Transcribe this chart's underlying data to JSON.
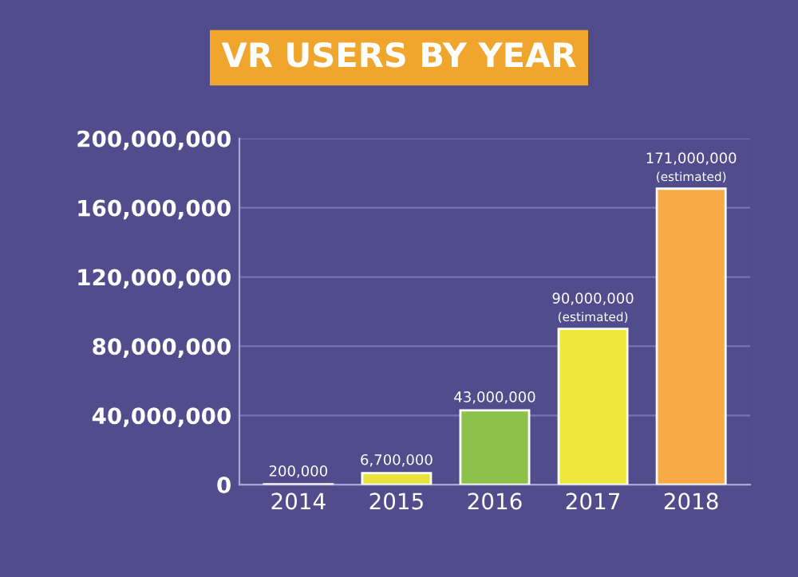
{
  "chart_data": {
    "type": "bar",
    "title": "VR USERS BY YEAR",
    "categories": [
      "2014",
      "2015",
      "2016",
      "2017",
      "2018"
    ],
    "values": [
      200000,
      6700000,
      43000000,
      90000000,
      171000000
    ],
    "colors": [
      "#f2a23c",
      "#e9e43c",
      "#8cc24a",
      "#ede83a",
      "#f7aa45"
    ],
    "value_labels": [
      "200,000",
      "6,700,000",
      "43,000,000",
      "90,000,000",
      "171,000,000"
    ],
    "annotations": [
      {
        "text": "(estimated)",
        "x": "2017",
        "y": 90000000
      },
      {
        "text": "(estimated)",
        "x": "2018",
        "y": 171000000
      }
    ],
    "ylim": [
      0,
      200000000
    ],
    "yticks": [
      {
        "value": 0,
        "label": "0"
      },
      {
        "value": 40000000,
        "label": "40,000,000"
      },
      {
        "value": 80000000,
        "label": "80,000,000"
      },
      {
        "value": 120000000,
        "label": "120,000,000"
      },
      {
        "value": 160000000,
        "label": "160,000,000"
      },
      {
        "value": 200000000,
        "label": "200,000,000"
      }
    ],
    "grid": "y",
    "legend": false
  }
}
